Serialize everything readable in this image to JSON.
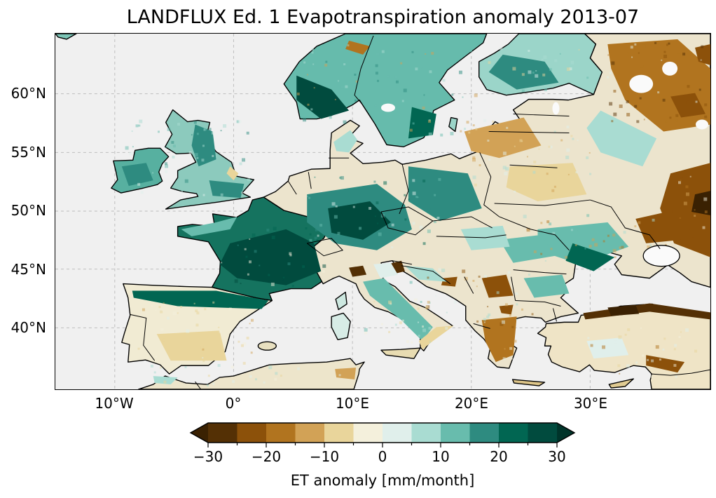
{
  "figure": {
    "title": "LANDFLUX Ed. 1 Evapotranspiration anomaly 2013-07"
  },
  "chart_data": {
    "type": "heatmap",
    "title": "LANDFLUX Ed. 1 Evapotranspiration anomaly 2013-07",
    "dataset": "LANDFLUX Ed. 1",
    "variable": "Evapotranspiration anomaly",
    "period": "2013-07",
    "projection_extent": {
      "lon_min": -15.0,
      "lon_max": 40.2,
      "lat_min": 34.7,
      "lat_max": 65.1
    },
    "x_axis": {
      "tick_labels": [
        "10°W",
        "0°",
        "10°E",
        "20°E",
        "30°E"
      ],
      "tick_values_deg_east": [
        -10,
        0,
        10,
        20,
        30
      ]
    },
    "y_axis": {
      "tick_labels": [
        "60°N",
        "55°N",
        "50°N",
        "45°N",
        "40°N"
      ],
      "tick_values_deg_north": [
        60,
        55,
        50,
        45,
        40
      ]
    },
    "grid": "dashed gray lines at tick positions",
    "colorbar": {
      "label": "ET anomaly [mm/month]",
      "orientation": "horizontal",
      "colormap": "BrBG (brown-teal diverging)",
      "extend": "both",
      "tick_labels": [
        "−30",
        "−20",
        "−10",
        "0",
        "10",
        "20",
        "30"
      ],
      "tick_values": [
        -30,
        -20,
        -10,
        0,
        10,
        20,
        30
      ],
      "bin_edges": [
        -30,
        -25,
        -20,
        -15,
        -10,
        -5,
        0,
        5,
        10,
        15,
        20,
        25,
        30
      ],
      "bin_colors": [
        "#543005",
        "#8c510a",
        "#b1741f",
        "#d2a256",
        "#e9d59b",
        "#f4f0dc",
        "#e0efeb",
        "#a9dcd2",
        "#68bcad",
        "#2e8b80",
        "#016652",
        "#014b3e"
      ],
      "under_color": "#3a2102",
      "over_color": "#00342a"
    },
    "map": {
      "ocean_color": "#f0f0f0",
      "lake_color": "#fafafa",
      "coastline_color": "#000000",
      "gridline_color": "#bdbdbd",
      "regions": {
        "iberia": {
          "label": "Iberian Peninsula interior",
          "approx_anomaly": "-10 to +5",
          "color": "#f1ebd3"
        },
        "france": {
          "label": "France",
          "approx_anomaly": "+20 to +30",
          "color": "#15735f"
        },
        "uk": {
          "label": "United Kingdom",
          "approx_anomaly": "+5 to +20",
          "color": "#8ccabd"
        },
        "ireland": {
          "label": "Ireland",
          "approx_anomaly": "+10 to +20",
          "color": "#57b0a0"
        },
        "scandinavia": {
          "label": "Norway and Sweden",
          "approx_anomaly": "+10 to +30",
          "color": "#66bbac"
        },
        "finland": {
          "label": "Finland",
          "approx_anomaly": "+5 to +20",
          "color": "#9bd5c9"
        },
        "mainland": {
          "label": "Continental Europe base",
          "approx_anomaly": "mixed",
          "color": "#ece4cd"
        },
        "turkey": {
          "label": "Turkey interior",
          "approx_anomaly": "-10 to 0",
          "color": "#efe4c6"
        },
        "africa": {
          "label": "North Africa",
          "approx_anomaly": "-5 to +5",
          "color": "#ede5cb"
        },
        "corsica": {
          "label": "Corsica",
          "approx_anomaly": "+5 to +10",
          "color": "#cde8e0"
        },
        "sardinia": {
          "label": "Sardinia",
          "approx_anomaly": "0 to +10",
          "color": "#d7ece6"
        },
        "sicily": {
          "label": "Sicily",
          "approx_anomaly": "-10 to 0",
          "color": "#e8dcb2"
        },
        "crete": {
          "label": "Crete",
          "approx_anomaly": "-15 to -5",
          "color": "#dcc488"
        },
        "cyprus": {
          "label": "Cyprus",
          "approx_anomaly": "-15 to -5",
          "color": "#e0cb92"
        },
        "iceland_corner": {
          "label": "Iceland (corner)",
          "approx_anomaly": "+5 to +15",
          "color": "#7cc5b6"
        },
        "gotland": {
          "label": "Gotland",
          "approx_anomaly": "+5 to +15",
          "color": "#9bd5c9"
        },
        "mallorca": {
          "label": "Balearic Islands",
          "approx_anomaly": "-5 to +5",
          "color": "#e8e0c0"
        }
      }
    },
    "anomaly_features": [
      {
        "area": "France and northern Spain",
        "anomaly": "+20 to +30"
      },
      {
        "area": "Central Europe (Germany, Czechia, Poland)",
        "anomaly": "+15 to +30"
      },
      {
        "area": "Southern Norway",
        "anomaly": "+25 to +30"
      },
      {
        "area": "British Isles",
        "anomaly": "+5 to +20"
      },
      {
        "area": "Baltic states and Belarus",
        "anomaly": "-15 to 0"
      },
      {
        "area": "North-west and central Russia",
        "anomaly": "-30 to -15"
      },
      {
        "area": "Eastern Ukraine and lower Volga",
        "anomaly": "-30 to -15"
      },
      {
        "area": "Central and southern Ukraine",
        "anomaly": "+10 to +20"
      },
      {
        "area": "Serbia and North Macedonia",
        "anomaly": "-25 to -10"
      },
      {
        "area": "Greece",
        "anomaly": "-20 to -5"
      },
      {
        "area": "Northern Turkey Black Sea coast",
        "anomaly": "-30 to -20"
      },
      {
        "area": "Interior Iberia",
        "anomaly": "-10 to +5"
      },
      {
        "area": "Italy along Apennines",
        "anomaly": "+10 to +20"
      }
    ]
  }
}
